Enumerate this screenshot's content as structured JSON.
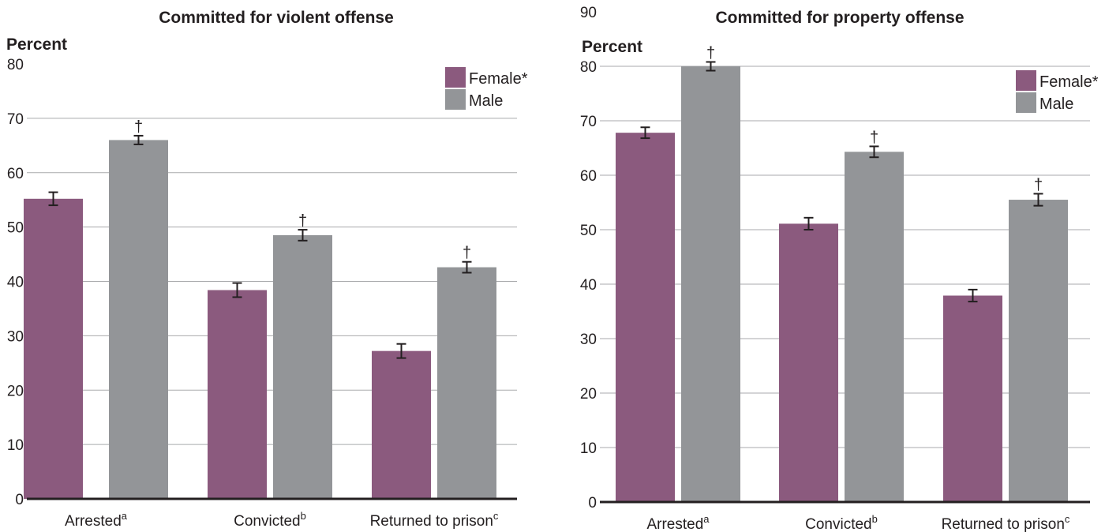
{
  "colors": {
    "female": "#8b5a7e",
    "male": "#939598"
  },
  "chart_data": [
    {
      "type": "bar",
      "title": "Committed for violent offense",
      "ylabel": "Percent",
      "ylim": [
        0,
        80
      ],
      "yticks": [
        "0",
        "10",
        "20",
        "30",
        "40",
        "50",
        "60",
        "70",
        "80"
      ],
      "categories": [
        {
          "label": "Arrested",
          "sup": "a"
        },
        {
          "label": "Convicted",
          "sup": "b"
        },
        {
          "label": "Returned to prison",
          "sup": "c"
        }
      ],
      "series": [
        {
          "name": "Female*",
          "color": "#8b5a7e",
          "values": [
            55.2,
            38.4,
            27.2
          ],
          "errors": [
            1.2,
            1.3,
            1.3
          ]
        },
        {
          "name": "Male",
          "color": "#939598",
          "values": [
            66.0,
            48.5,
            42.6
          ],
          "errors": [
            0.8,
            1.0,
            1.0
          ]
        }
      ],
      "markers": [
        "†",
        "†",
        "†"
      ],
      "legend": "top-right",
      "grid": true
    },
    {
      "type": "bar",
      "title": "Committed for property offense",
      "ylabel": "Percent",
      "ylim": [
        0,
        90
      ],
      "yticks": [
        "0",
        "10",
        "20",
        "30",
        "40",
        "50",
        "60",
        "70",
        "80",
        "90"
      ],
      "categories": [
        {
          "label": "Arrested",
          "sup": "a"
        },
        {
          "label": "Convicted",
          "sup": "b"
        },
        {
          "label": "Returned to prison",
          "sup": "c"
        }
      ],
      "series": [
        {
          "name": "Female*",
          "color": "#8b5a7e",
          "values": [
            67.8,
            51.1,
            37.9
          ],
          "errors": [
            1.0,
            1.1,
            1.1
          ]
        },
        {
          "name": "Male",
          "color": "#939598",
          "values": [
            80.0,
            64.3,
            55.5
          ],
          "errors": [
            0.8,
            1.0,
            1.1
          ]
        }
      ],
      "markers": [
        "†",
        "†",
        "†"
      ],
      "legend": "top-right",
      "grid": true
    }
  ]
}
